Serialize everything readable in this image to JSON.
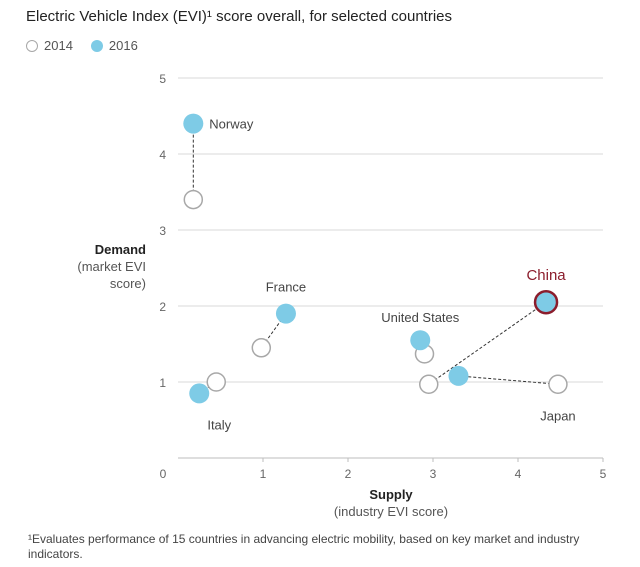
{
  "title": "Electric Vehicle Index (EVI)¹ score overall, for selected countries",
  "legend": {
    "y2014": "2014",
    "y2016": "2016"
  },
  "axes": {
    "ylabel_main": "Demand",
    "ylabel_sub1": "(market EVI",
    "ylabel_sub2": "score)",
    "xlabel_main": "Supply",
    "xlabel_sub": "(industry EVI score)"
  },
  "footnote": "¹Evaluates performance of 15 countries in advancing electric mobility, based on key market and industry indicators.",
  "colors": {
    "y2016_fill": "#7ecbe6",
    "y2014_stroke": "#a8a8a8",
    "arrow": "#333333",
    "highlight": "#8b1d2c",
    "grid": "#d9d9d9"
  },
  "chart_data": {
    "type": "scatter",
    "title": "Electric Vehicle Index (EVI)¹ score overall, for selected countries",
    "xlabel": "Supply (industry EVI score)",
    "ylabel": "Demand (market EVI score)",
    "xlim": [
      0,
      5
    ],
    "ylim": [
      0,
      5
    ],
    "xticks": [
      0,
      1,
      2,
      3,
      4,
      5
    ],
    "yticks": [
      1,
      2,
      3,
      4,
      5
    ],
    "grid": "horizontal",
    "legend_position": "top-left",
    "countries": [
      {
        "name": "Norway",
        "x2014": 0.18,
        "y2014": 3.4,
        "x2016": 0.18,
        "y2016": 4.4,
        "label_side": "right",
        "highlight": false
      },
      {
        "name": "France",
        "x2014": 0.98,
        "y2014": 1.45,
        "x2016": 1.27,
        "y2016": 1.9,
        "label_side": "above",
        "highlight": false
      },
      {
        "name": "Italy",
        "x2014": 0.45,
        "y2014": 1.0,
        "x2016": 0.25,
        "y2016": 0.85,
        "label_side": "below",
        "highlight": false
      },
      {
        "name": "United States",
        "x2014": 2.9,
        "y2014": 1.37,
        "x2016": 2.85,
        "y2016": 1.55,
        "label_side": "above",
        "highlight": false
      },
      {
        "name": "China",
        "x2014": 2.95,
        "y2014": 0.97,
        "x2016": 4.33,
        "y2016": 2.05,
        "label_side": "above",
        "highlight": true
      },
      {
        "name": "Japan",
        "x2014": 4.47,
        "y2014": 0.97,
        "x2016": 3.3,
        "y2016": 1.08,
        "label_side": "below",
        "highlight": false
      }
    ]
  }
}
